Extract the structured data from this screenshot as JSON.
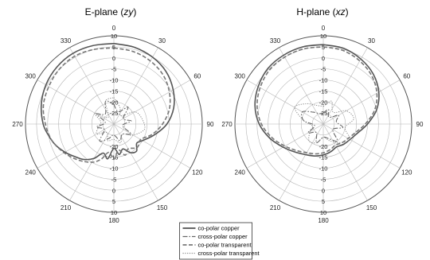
{
  "chart_data": [
    {
      "type": "polar",
      "title": "E-plane (zy)",
      "title_main": "E-plane (",
      "title_var": "zy",
      "title_close": ")",
      "angle_ticks": [
        {
          "deg": 0,
          "label": "0"
        },
        {
          "deg": 30,
          "label": "30"
        },
        {
          "deg": 60,
          "label": "60"
        },
        {
          "deg": 90,
          "label": "90"
        },
        {
          "deg": 120,
          "label": "120"
        },
        {
          "deg": 150,
          "label": "150"
        },
        {
          "deg": 180,
          "label": "180"
        },
        {
          "deg": 210,
          "label": "210"
        },
        {
          "deg": 240,
          "label": "240"
        },
        {
          "deg": 270,
          "label": "270"
        },
        {
          "deg": 300,
          "label": "300"
        },
        {
          "deg": 330,
          "label": "330"
        }
      ],
      "radial_ticks_top": [
        10,
        5,
        0,
        -5,
        -10,
        -15,
        -20,
        -25
      ],
      "radial_ticks_bottom": [
        -20,
        -15,
        -10,
        -5,
        0,
        5,
        10
      ],
      "r_range": [
        -30,
        10
      ],
      "series": [
        {
          "name": "co-polar copper",
          "style": "solid",
          "theta": [
            0,
            15,
            30,
            45,
            60,
            75,
            90,
            105,
            120,
            130,
            140,
            150,
            160,
            170,
            180,
            190,
            200,
            210,
            220,
            230,
            240,
            250,
            260,
            270,
            285,
            300,
            315,
            330,
            345,
            360
          ],
          "r": [
            6.5,
            6,
            5,
            3.5,
            1,
            -2,
            -6,
            -11,
            -15,
            -16.5,
            -14,
            -15,
            -18,
            -16,
            -19,
            -14,
            -16,
            -12,
            -9,
            -7,
            -4.5,
            -2,
            0,
            2,
            4,
            5.5,
            6.5,
            7,
            6.8,
            6.5
          ]
        },
        {
          "name": "cross-polar copper",
          "style": "dashdot",
          "theta": [
            0,
            20,
            40,
            60,
            80,
            100,
            120,
            140,
            160,
            180,
            200,
            220,
            240,
            260,
            280,
            300,
            320,
            340,
            360
          ],
          "r": [
            -21,
            -24,
            -20,
            -25,
            -22,
            -26,
            -21,
            -24,
            -22,
            -25,
            -23,
            -20,
            -25,
            -22,
            -26,
            -21,
            -24,
            -19,
            -21
          ]
        },
        {
          "name": "co-polar transparent",
          "style": "dashed",
          "theta": [
            0,
            15,
            30,
            45,
            60,
            75,
            90,
            105,
            120,
            135,
            150,
            160,
            170,
            180,
            190,
            200,
            210,
            225,
            240,
            255,
            270,
            285,
            300,
            315,
            330,
            345,
            360
          ],
          "r": [
            4.5,
            4,
            3,
            1.5,
            -1,
            -4,
            -8,
            -12,
            -16,
            -15,
            -17,
            -15,
            -18,
            -14,
            -17,
            -13,
            -10,
            -7,
            -4,
            -1,
            1,
            3,
            4,
            5,
            5.5,
            5,
            4.5
          ]
        },
        {
          "name": "cross-polar transparent",
          "style": "dotted",
          "theta": [
            0,
            20,
            40,
            60,
            80,
            100,
            120,
            140,
            160,
            180,
            200,
            220,
            240,
            260,
            280,
            300,
            320,
            340,
            360
          ],
          "r": [
            -18,
            -22,
            -25,
            -19,
            -17,
            -16,
            -20,
            -24,
            -21,
            -23,
            -22,
            -25,
            -21,
            -23,
            -24,
            -20,
            -26,
            -19,
            -18
          ]
        }
      ]
    },
    {
      "type": "polar",
      "title": "H-plane (xz)",
      "title_main": "H-plane (",
      "title_var": "xz",
      "title_close": ")",
      "angle_ticks": [
        {
          "deg": 0,
          "label": "0"
        },
        {
          "deg": 30,
          "label": "30"
        },
        {
          "deg": 60,
          "label": "60"
        },
        {
          "deg": 90,
          "label": "90"
        },
        {
          "deg": 120,
          "label": "120"
        },
        {
          "deg": 150,
          "label": "150"
        },
        {
          "deg": 180,
          "label": "180"
        },
        {
          "deg": 210,
          "label": "210"
        },
        {
          "deg": 240,
          "label": "240"
        },
        {
          "deg": 270,
          "label": "270"
        },
        {
          "deg": 300,
          "label": "300"
        },
        {
          "deg": 330,
          "label": "330"
        }
      ],
      "radial_ticks_top": [
        10,
        5,
        0,
        -5,
        -10,
        -15,
        -20,
        -25
      ],
      "radial_ticks_bottom": [
        -20,
        -15,
        -10,
        -5,
        0,
        5,
        10
      ],
      "r_range": [
        -30,
        10
      ],
      "series": [
        {
          "name": "co-polar copper",
          "style": "solid",
          "theta": [
            0,
            15,
            30,
            45,
            60,
            75,
            90,
            105,
            120,
            135,
            150,
            165,
            180,
            195,
            210,
            225,
            240,
            255,
            270,
            285,
            300,
            315,
            330,
            345,
            360
          ],
          "r": [
            6,
            5.5,
            4,
            2,
            -1,
            -5,
            -10,
            -14,
            -16,
            -17,
            -18,
            -17,
            -16,
            -15,
            -14,
            -12,
            -9,
            -5,
            -1,
            2,
            4,
            5.5,
            6,
            6.2,
            6
          ]
        },
        {
          "name": "cross-polar copper",
          "style": "dashdot",
          "theta": [
            0,
            20,
            40,
            60,
            80,
            100,
            120,
            140,
            160,
            180,
            200,
            220,
            240,
            260,
            280,
            300,
            320,
            340,
            360
          ],
          "r": [
            -25,
            -23,
            -26,
            -22,
            -24,
            -21,
            -25,
            -20,
            -23,
            -24,
            -21,
            -25,
            -22,
            -26,
            -21,
            -19,
            -23,
            -25,
            -25
          ]
        },
        {
          "name": "co-polar transparent",
          "style": "dashed",
          "theta": [
            0,
            15,
            30,
            45,
            60,
            75,
            90,
            105,
            120,
            135,
            150,
            165,
            180,
            195,
            210,
            225,
            240,
            255,
            270,
            285,
            300,
            315,
            330,
            345,
            360
          ],
          "r": [
            5,
            4.5,
            3,
            1,
            -2,
            -6,
            -11,
            -15,
            -17,
            -18,
            -19,
            -18,
            -17,
            -16,
            -15,
            -13,
            -10,
            -6,
            -2,
            1,
            3,
            4.5,
            5,
            5.2,
            5
          ]
        },
        {
          "name": "cross-polar transparent",
          "style": "dotted",
          "theta": [
            0,
            20,
            40,
            60,
            80,
            100,
            120,
            140,
            160,
            180,
            200,
            220,
            240,
            260,
            280,
            300,
            320,
            340,
            360
          ],
          "r": [
            -22,
            -19,
            -23,
            -18,
            -16,
            -20,
            -16,
            -19,
            -22,
            -24,
            -21,
            -20,
            -23,
            -25,
            -21,
            -15,
            -18,
            -21,
            -22
          ]
        }
      ]
    }
  ],
  "legend": [
    {
      "label": "co-polar copper",
      "style": "solid"
    },
    {
      "label": "cross-polar copper",
      "style": "dashdot"
    },
    {
      "label": "co-polar transparent",
      "style": "dashed"
    },
    {
      "label": "cross-polar transparent",
      "style": "dotted"
    }
  ],
  "colors": {
    "solid": "#555555",
    "dashdot": "#666666",
    "dashed": "#777777",
    "dotted": "#888888",
    "grid": "#b5b5b5",
    "axis": "#555555"
  }
}
